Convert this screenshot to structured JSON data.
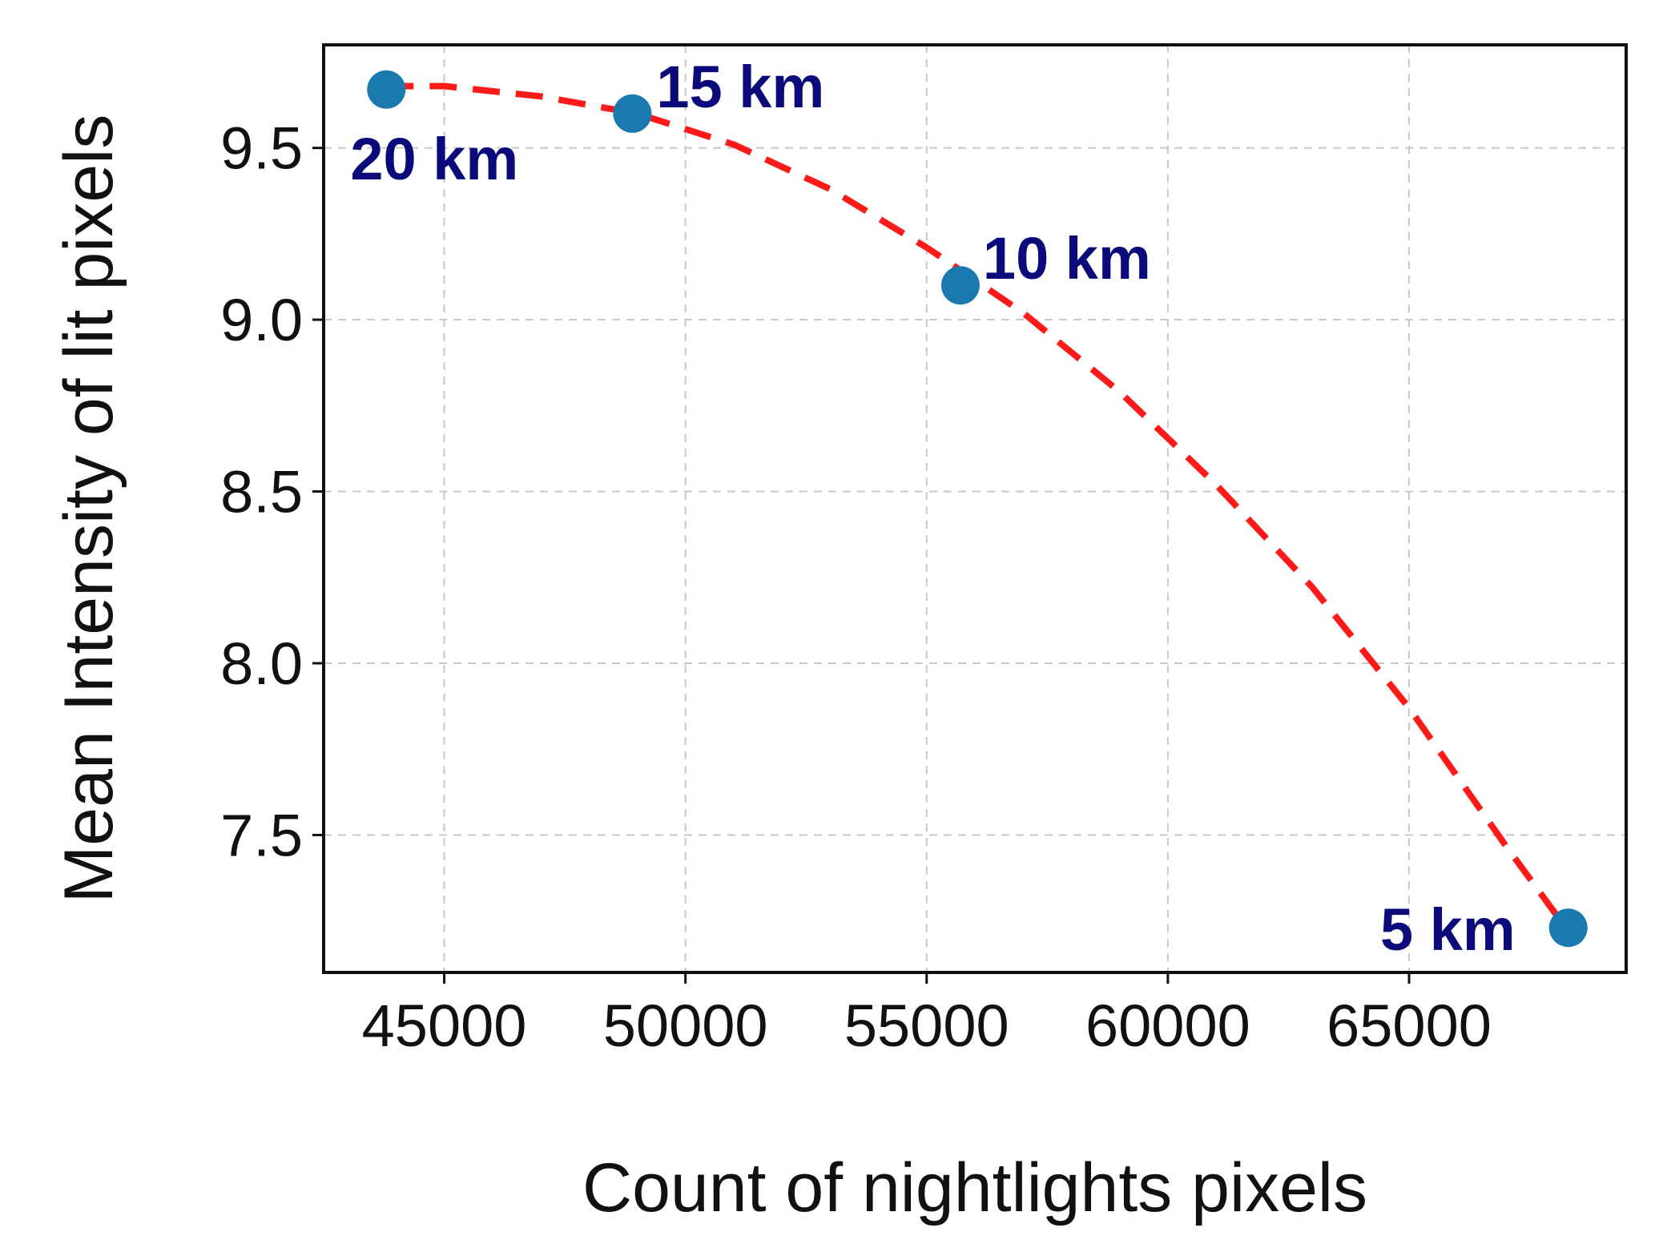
{
  "chart_data": {
    "type": "scatter",
    "xlabel": "Count of nightlights pixels",
    "ylabel": "Mean Intensity of lit pixels",
    "xlim": [
      42500,
      69500
    ],
    "ylim": [
      7.1,
      9.8
    ],
    "xticks": [
      45000,
      50000,
      55000,
      60000,
      65000
    ],
    "xtick_labels": [
      "45000",
      "50000",
      "55000",
      "60000",
      "65000"
    ],
    "yticks": [
      7.5,
      8.0,
      8.5,
      9.0,
      9.5
    ],
    "ytick_labels": [
      "7.5",
      "8.0",
      "8.5",
      "9.0",
      "9.5"
    ],
    "grid": true,
    "points": [
      {
        "label": "20 km",
        "x": 43800,
        "y": 9.67
      },
      {
        "label": "15 km",
        "x": 48900,
        "y": 9.6
      },
      {
        "label": "10 km",
        "x": 55700,
        "y": 9.1
      },
      {
        "label": "5 km",
        "x": 68300,
        "y": 7.23
      }
    ],
    "fit_curve": {
      "style": "dashed",
      "x": [
        43800,
        45000,
        47000,
        49000,
        51000,
        53000,
        55000,
        57000,
        59000,
        61000,
        63000,
        65000,
        67000,
        68300
      ],
      "y": [
        9.68,
        9.68,
        9.65,
        9.6,
        9.51,
        9.38,
        9.21,
        9.02,
        8.79,
        8.52,
        8.22,
        7.87,
        7.47,
        7.22
      ]
    },
    "colors": {
      "points": "#1a7ab0",
      "curve": "#ff1a1a",
      "point_labels": "#0a0a7a",
      "grid": "#c8c8c8",
      "axis": "#111111"
    }
  }
}
